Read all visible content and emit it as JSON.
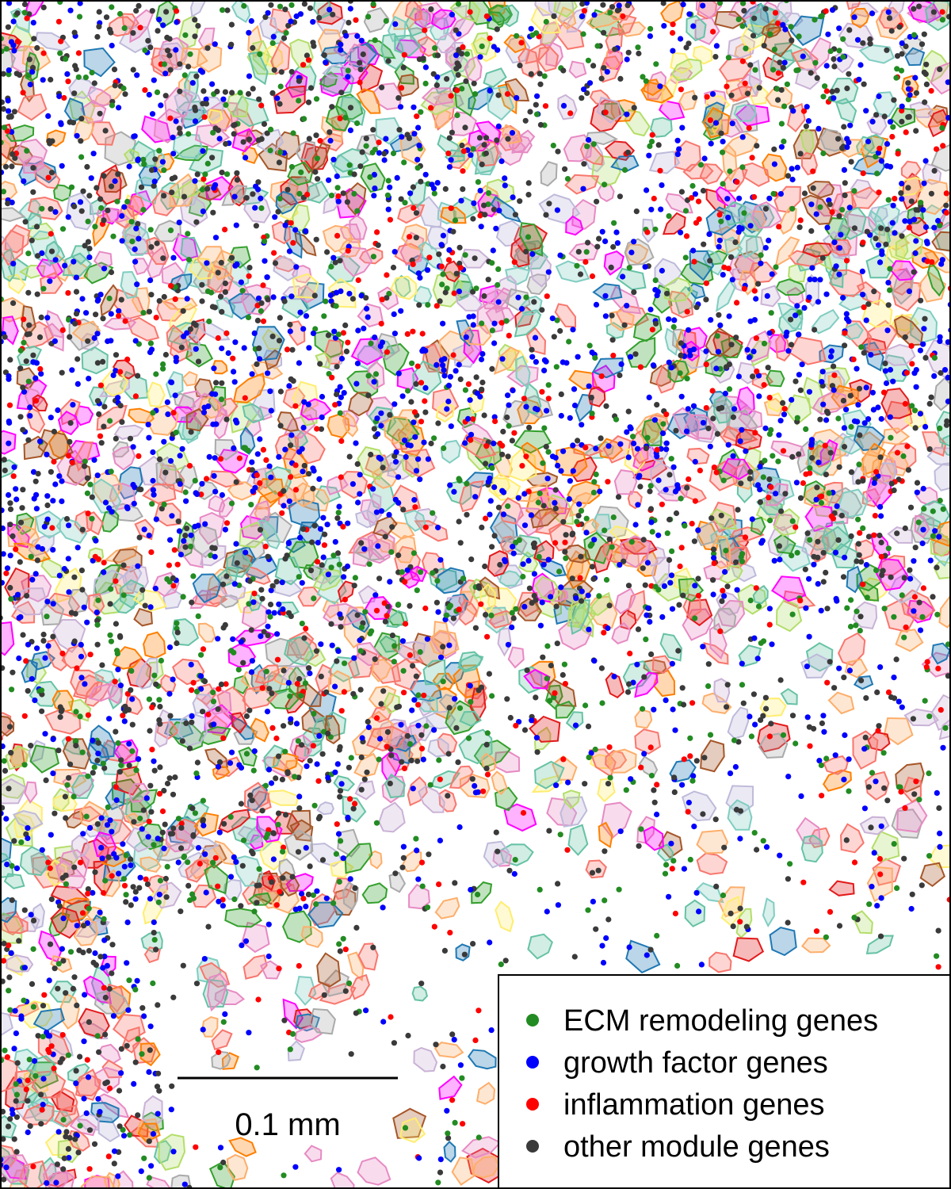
{
  "plot": {
    "cell_outline_colors": [
      "#f8766d",
      "#f8766d",
      "#f8766d",
      "#fdae6b",
      "#fdae6b",
      "#66c2a5",
      "#66c2a5",
      "#e78ac3",
      "#e78ac3",
      "#b3de69",
      "#bebada",
      "#cab2d6",
      "#ffed6f",
      "#aaaaaa",
      "#e31a1c",
      "#1f78b4",
      "#33a02c",
      "#ff7f00",
      "#a65628",
      "#ff00ff",
      "#80cdc1"
    ],
    "cell_fill_opacity": 0.3,
    "gene_module_colors": {
      "ecm": "#228b22",
      "growth": "#0000ff",
      "inflammation": "#ff0000",
      "other": "#3a3a3a"
    },
    "transcript_density_bands": [
      {
        "module": "growth",
        "region": "central diagonal stroma"
      },
      {
        "module": "other",
        "region": "left tissue"
      },
      {
        "module": "ecm",
        "region": "scattered"
      },
      {
        "module": "inflammation",
        "region": "central band"
      }
    ]
  },
  "legend": {
    "items": [
      {
        "label": "ECM remodeling genes",
        "color": "#228b22"
      },
      {
        "label": "growth factor genes",
        "color": "#0000ff"
      },
      {
        "label": "inflammation genes",
        "color": "#ff0000"
      },
      {
        "label": "other module genes",
        "color": "#3a3a3a"
      }
    ]
  },
  "scale_bar": {
    "label": "0.1 mm"
  }
}
